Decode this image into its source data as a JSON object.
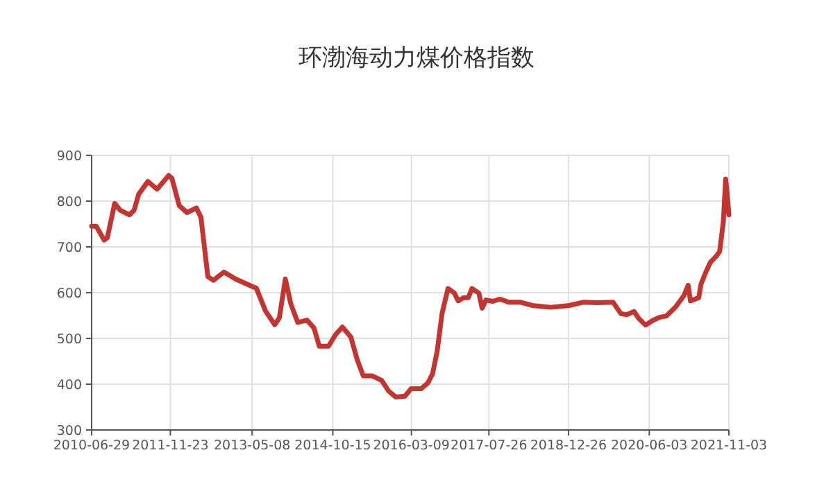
{
  "chart_data": {
    "type": "line",
    "title": "环渤海动力煤价格指数",
    "color": "#c23531",
    "grid": true,
    "xlim": [
      "2010-06-29",
      "2021-11-03"
    ],
    "ylim": [
      300,
      900
    ],
    "xticks": [
      "2010-06-29",
      "2011-11-23",
      "2013-05-08",
      "2014-10-15",
      "2016-03-09",
      "2017-07-26",
      "2018-12-26",
      "2020-06-03",
      "2021-11-03"
    ],
    "yticks": [
      300,
      400,
      500,
      600,
      700,
      800,
      900
    ],
    "x": [
      "2010-06-29",
      "2010-07-29",
      "2010-09-18",
      "2010-10-09",
      "2010-11-26",
      "2011-01-01",
      "2011-03-02",
      "2011-04-01",
      "2011-05-01",
      "2011-06-30",
      "2011-08-29",
      "2011-11-12",
      "2011-12-03",
      "2012-01-20",
      "2012-03-11",
      "2012-05-10",
      "2012-06-09",
      "2012-07-24",
      "2012-08-29",
      "2012-11-06",
      "2013-01-20",
      "2013-05-05",
      "2013-06-04",
      "2013-08-03",
      "2013-10-02",
      "2013-11-01",
      "2013-12-10",
      "2014-01-15",
      "2014-03-01",
      "2014-04-30",
      "2014-06-14",
      "2014-07-19",
      "2014-09-17",
      "2014-11-01",
      "2014-12-16",
      "2015-02-09",
      "2015-03-23",
      "2015-05-01",
      "2015-06-30",
      "2015-08-29",
      "2015-10-13",
      "2015-11-28",
      "2016-01-27",
      "2016-03-06",
      "2016-05-11",
      "2016-06-25",
      "2016-07-25",
      "2016-08-24",
      "2016-09-24",
      "2016-11-02",
      "2016-12-14",
      "2017-01-07",
      "2017-02-12",
      "2017-03-14",
      "2017-04-07",
      "2017-05-22",
      "2017-06-12",
      "2017-07-07",
      "2017-08-21",
      "2017-10-05",
      "2017-12-04",
      "2018-02-17",
      "2018-05-04",
      "2018-09-01",
      "2018-12-30",
      "2019-03-31",
      "2019-06-29",
      "2019-10-12",
      "2019-12-02",
      "2020-01-11",
      "2020-02-25",
      "2020-03-26",
      "2020-05-10",
      "2020-06-24",
      "2020-08-08",
      "2020-09-22",
      "2020-11-22",
      "2021-01-15",
      "2021-02-11",
      "2021-02-26",
      "2021-04-21",
      "2021-05-06",
      "2021-06-05",
      "2021-07-05",
      "2021-08-14",
      "2021-09-04",
      "2021-09-28",
      "2021-10-13",
      "2021-10-22",
      "2021-11-03"
    ],
    "values": [
      745,
      745,
      715,
      720,
      795,
      780,
      770,
      780,
      815,
      843,
      826,
      856,
      850,
      790,
      775,
      785,
      765,
      635,
      627,
      645,
      630,
      614,
      610,
      560,
      530,
      545,
      630,
      575,
      535,
      540,
      523,
      483,
      483,
      508,
      525,
      503,
      453,
      418,
      418,
      408,
      385,
      372,
      374,
      390,
      390,
      403,
      423,
      473,
      554,
      609,
      599,
      582,
      589,
      589,
      609,
      599,
      566,
      584,
      581,
      586,
      579,
      579,
      572,
      568,
      572,
      579,
      578,
      579,
      554,
      552,
      559,
      544,
      529,
      539,
      546,
      549,
      569,
      594,
      616,
      582,
      589,
      619,
      644,
      666,
      680,
      690,
      755,
      848,
      820,
      770
    ]
  }
}
